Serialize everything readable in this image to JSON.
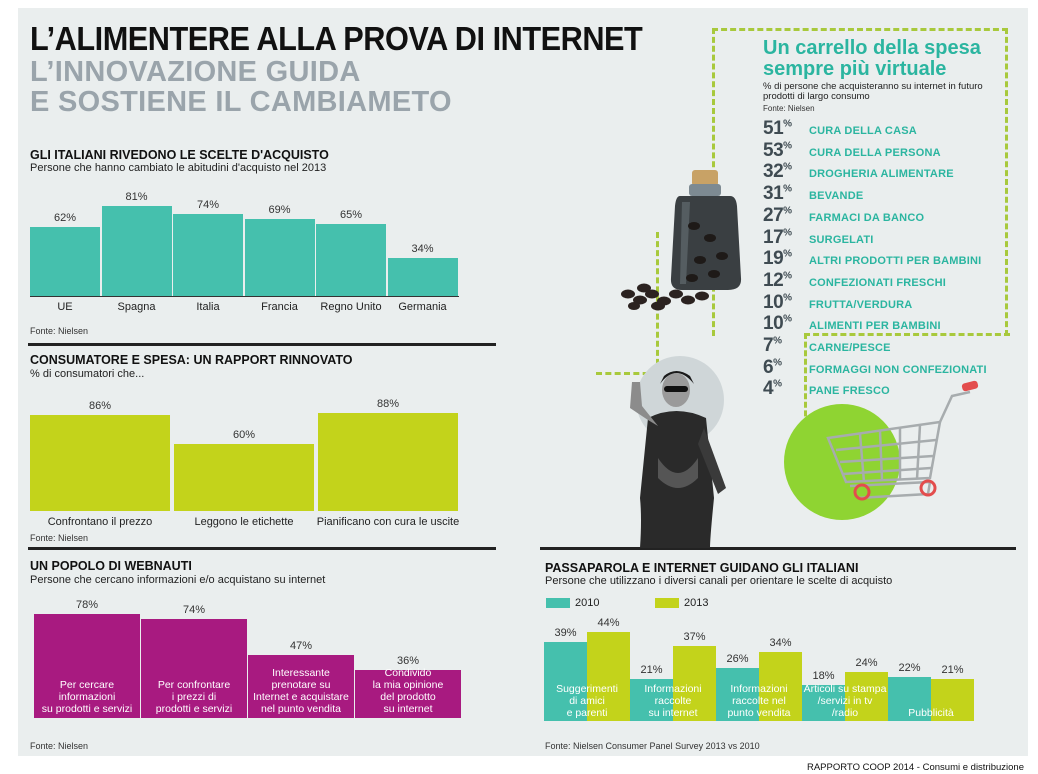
{
  "header": {
    "title": "L’ALIMENTERE ALLA PROVA DI INTERNET",
    "subtitle_line1": "L’INNOVAZIONE GUIDA",
    "subtitle_line2": "E SOSTIENE IL CAMBIAMETO"
  },
  "colors": {
    "teal": "#45c0ad",
    "lime": "#c3d31b",
    "magenta": "#a81a80",
    "cart_teal": "#2bb5a0",
    "circle_green": "#8fd432"
  },
  "icons": [
    "coffee-jar-icon",
    "coffee-beans-icon",
    "woman-photo-icon",
    "shopping-cart-icon"
  ],
  "section1": {
    "title": "GLI ITALIANI RIVEDONO LE SCELTE D'ACQUISTO",
    "subtitle": "Persone che hanno cambiato le abitudini d'acquisto nel 2013",
    "source": "Fonte: Nielsen"
  },
  "section2": {
    "title": "CONSUMATORE E SPESA: UN RAPPORT RINNOVATO",
    "subtitle": "% di consumatori che...",
    "source": "Fonte: Nielsen"
  },
  "section3": {
    "title": "UN POPOLO DI WEBNAUTI",
    "subtitle": "Persone che cercano informazioni e/o acquistano su internet",
    "source": "Fonte: Nielsen"
  },
  "section4": {
    "title": "PASSAPAROLA E INTERNET GUIDANO GLI ITALIANI",
    "subtitle": "Persone che utilizzano i diversi canali per orientare le scelte di acquisto",
    "source": "Fonte: Nielsen Consumer Panel Survey 2013 vs 2010"
  },
  "cart": {
    "title_line1": "Un carrello della spesa",
    "title_line2": "sempre più virtuale",
    "subtitle_line1": "% di persone che acquisteranno su internet in futuro",
    "subtitle_line2": "prodotti di largo consumo",
    "source": "Fonte: Nielsen"
  },
  "footer": "RAPPORTO COOP 2014 - Consumi e distribuzione",
  "chart_data": [
    {
      "type": "bar",
      "categories": [
        "UE",
        "Spagna",
        "Italia",
        "Francia",
        "Regno Unito",
        "Germania"
      ],
      "values": [
        62,
        81,
        74,
        69,
        65,
        34
      ],
      "value_labels": [
        "62%",
        "81%",
        "74%",
        "69%",
        "65%",
        "34%"
      ],
      "ylim": [
        0,
        81
      ]
    },
    {
      "type": "bar",
      "categories": [
        "Confrontano il prezzo",
        "Leggono le etichette",
        "Pianificano con cura le uscite"
      ],
      "values": [
        86,
        60,
        88
      ],
      "value_labels": [
        "86%",
        "60%",
        "88%"
      ],
      "ylim": [
        0,
        88
      ]
    },
    {
      "type": "bar",
      "categories": [
        "Per cercare informazioni su prodotti e servizi",
        "Per confrontare i prezzi di prodotti e servizi",
        "Interessante prenotare su Internet e acquistare nel punto vendita",
        "Condivido la mia opinione del prodotto su internet"
      ],
      "category_lines": [
        [
          "Per cercare",
          "informazioni",
          "su prodotti e servizi"
        ],
        [
          "Per confrontare",
          "i prezzi di",
          "prodotti e servizi"
        ],
        [
          "Interessante",
          "prenotare su",
          "Internet e acquistare",
          "nel punto vendita"
        ],
        [
          "Condivido",
          "la mia opinione",
          "del prodotto",
          "su internet"
        ]
      ],
      "values": [
        78,
        74,
        47,
        36
      ],
      "value_labels": [
        "78%",
        "74%",
        "47%",
        "36%"
      ],
      "ylim": [
        0,
        78
      ]
    },
    {
      "type": "bar",
      "categories": [
        "Suggerimenti di amici e parenti",
        "Informazioni raccolte su internet",
        "Informazioni raccolte nel punto vendita",
        "Articoli su stampa/servizi in tv/radio",
        "Pubblicità"
      ],
      "category_lines": [
        [
          "Suggerimenti",
          "di amici",
          "e parenti"
        ],
        [
          "Informazioni",
          "raccolte",
          "su internet"
        ],
        [
          "Informazioni",
          "raccolte nel",
          "punto vendita"
        ],
        [
          "Articoli su stampa",
          "/servizi in tv",
          "/radio"
        ],
        [
          "Pubblicità"
        ]
      ],
      "series": [
        {
          "name": "2010",
          "values": [
            39,
            21,
            26,
            18,
            22
          ],
          "value_labels": [
            "39%",
            "21%",
            "26%",
            "18%",
            "22%"
          ]
        },
        {
          "name": "2013",
          "values": [
            44,
            37,
            34,
            24,
            21
          ],
          "value_labels": [
            "44%",
            "37%",
            "34%",
            "24%",
            "21%"
          ]
        }
      ],
      "ylim": [
        0,
        44
      ]
    },
    {
      "type": "table",
      "rows": [
        {
          "value": 51,
          "category": "CURA DELLA CASA"
        },
        {
          "value": 53,
          "category": "CURA DELLA PERSONA"
        },
        {
          "value": 32,
          "category": "DROGHERIA ALIMENTARE"
        },
        {
          "value": 31,
          "category": "BEVANDE"
        },
        {
          "value": 27,
          "category": "FARMACI DA BANCO"
        },
        {
          "value": 17,
          "category": "SURGELATI"
        },
        {
          "value": 19,
          "category": "ALTRI PRODOTTI PER BAMBINI"
        },
        {
          "value": 12,
          "category": "CONFEZIONATI FRESCHI"
        },
        {
          "value": 10,
          "category": "FRUTTA/VERDURA"
        },
        {
          "value": 10,
          "category": "ALIMENTI PER BAMBINI"
        },
        {
          "value": 7,
          "category": "CARNE/PESCE"
        },
        {
          "value": 6,
          "category": "FORMAGGI NON CONFEZIONATI"
        },
        {
          "value": 4,
          "category": "PANE FRESCO"
        }
      ],
      "unit": "%"
    }
  ]
}
